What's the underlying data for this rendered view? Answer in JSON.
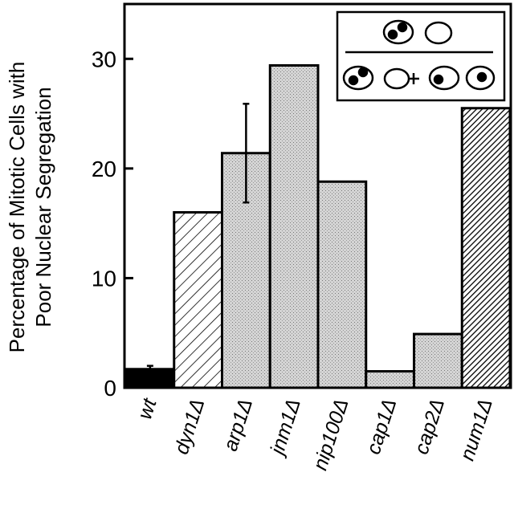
{
  "chart_data": {
    "type": "bar",
    "y_label": [
      "Percentage of Mitotic Cells with",
      "Poor Nuclear Segregation"
    ],
    "categories": [
      "wt",
      "dyn1Δ",
      "arp1Δ",
      "jnm1Δ",
      "nip100Δ",
      "cap1Δ",
      "cap2Δ",
      "num1Δ"
    ],
    "values": [
      1.7,
      16,
      21.4,
      29.4,
      18.8,
      1.5,
      4.9,
      25.5
    ],
    "errors": [
      0.3,
      null,
      4.5,
      null,
      null,
      null,
      null,
      null
    ],
    "patterns": [
      "solid",
      "hatch",
      "stipple",
      "stipple",
      "stipple",
      "stipple",
      "stipple",
      "dense-hatch"
    ],
    "ylim": [
      0,
      35
    ],
    "yticks": [
      0,
      10,
      20,
      30
    ]
  }
}
